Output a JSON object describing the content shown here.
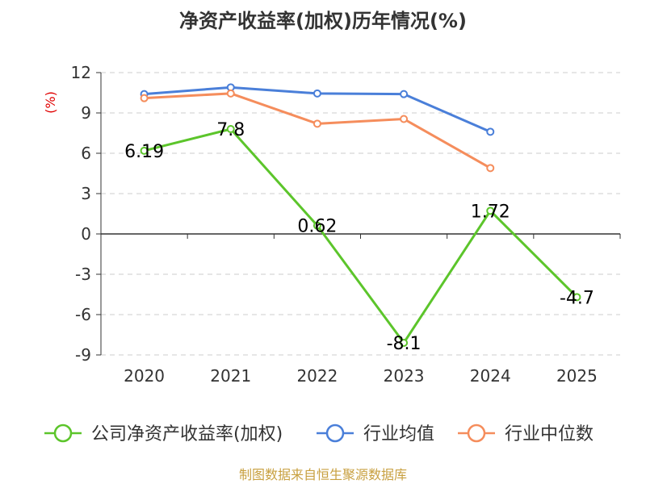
{
  "chart_data": {
    "type": "line",
    "title": "净资产收益率(加权)历年情况(%)",
    "ylabel": "(%)",
    "xlabel": "",
    "categories": [
      "2020",
      "2021",
      "2022",
      "2023",
      "2024",
      "2025"
    ],
    "ylim": [
      -9,
      12
    ],
    "yticks": [
      12,
      9,
      6,
      3,
      0,
      -3,
      -6,
      -9
    ],
    "grid": true,
    "legend_position": "bottom",
    "series": [
      {
        "name": "公司净资产收益率(加权)",
        "color": "#5cc52b",
        "values": [
          6.19,
          7.8,
          0.62,
          -8.1,
          1.72,
          -4.7
        ],
        "labels": [
          "6.19",
          "7.8",
          "0.62",
          "-8.1",
          "1.72",
          "-4.7"
        ]
      },
      {
        "name": "行业均值",
        "color": "#4a7fd9",
        "values": [
          10.4,
          10.9,
          10.45,
          10.4,
          7.6,
          null
        ]
      },
      {
        "name": "行业中位数",
        "color": "#f58d5c",
        "values": [
          10.1,
          10.45,
          8.2,
          8.55,
          4.9,
          null
        ]
      }
    ]
  },
  "source": "制图数据来自恒生聚源数据库"
}
